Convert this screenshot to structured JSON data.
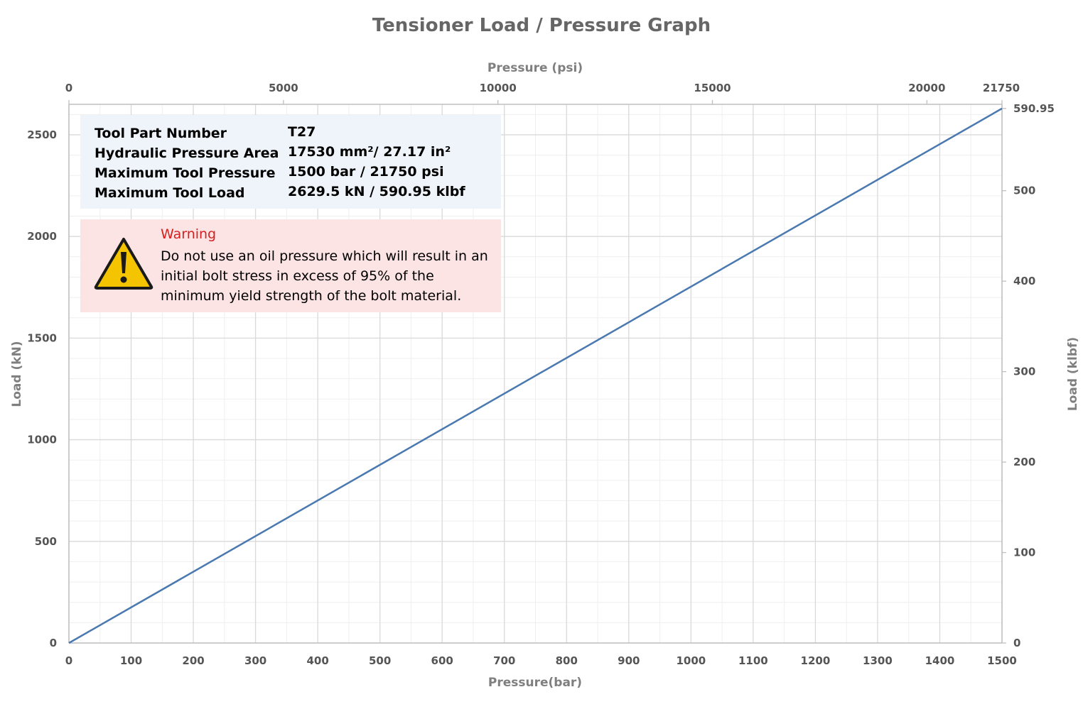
{
  "chart_data": {
    "type": "line",
    "title": "Tensioner Load / Pressure Graph",
    "xlabel": "Pressure(bar)",
    "ylabel": "Load (kN)",
    "x2label": "Pressure (psi)",
    "y2label": "Load (klbf)",
    "xlim": [
      0,
      1500
    ],
    "ylim": [
      0,
      2650
    ],
    "x2lim": [
      0,
      21750
    ],
    "y2lim": [
      0,
      595.5
    ],
    "x_ticks": [
      0,
      100,
      200,
      300,
      400,
      500,
      600,
      700,
      800,
      900,
      1000,
      1100,
      1200,
      1300,
      1400,
      1500
    ],
    "y_ticks": [
      0,
      500,
      1000,
      1500,
      2000,
      2500
    ],
    "x2_ticks": [
      "0",
      "5000",
      "10000",
      "15000",
      "20000",
      "21750"
    ],
    "x2_tick_values": [
      0,
      5000,
      10000,
      15000,
      20000,
      21750
    ],
    "y2_ticks": [
      "0",
      "100",
      "200",
      "300",
      "400",
      "500",
      "590.95"
    ],
    "y2_tick_values": [
      0,
      100,
      200,
      300,
      400,
      500,
      590.95
    ],
    "grid": true,
    "series": [
      {
        "x": [
          0,
          1500
        ],
        "y": [
          0,
          2629.5
        ],
        "color": "#4a78b0"
      }
    ]
  },
  "info": {
    "rows": [
      {
        "label": "Tool Part Number",
        "value": "T27"
      },
      {
        "label": "Hydraulic Pressure Area",
        "value": "17530 mm²/ 27.17 in²"
      },
      {
        "label": "Maximum Tool Pressure",
        "value": "1500 bar / 21750 psi"
      },
      {
        "label": "Maximum Tool Load",
        "value": "2629.5 kN / 590.95 klbf"
      }
    ]
  },
  "warning": {
    "title": "Warning",
    "text": "Do not use an oil pressure which will result in an initial bolt stress in excess of 95% of the minimum yield strength of the bolt material.",
    "icon": "warning-triangle-icon"
  }
}
